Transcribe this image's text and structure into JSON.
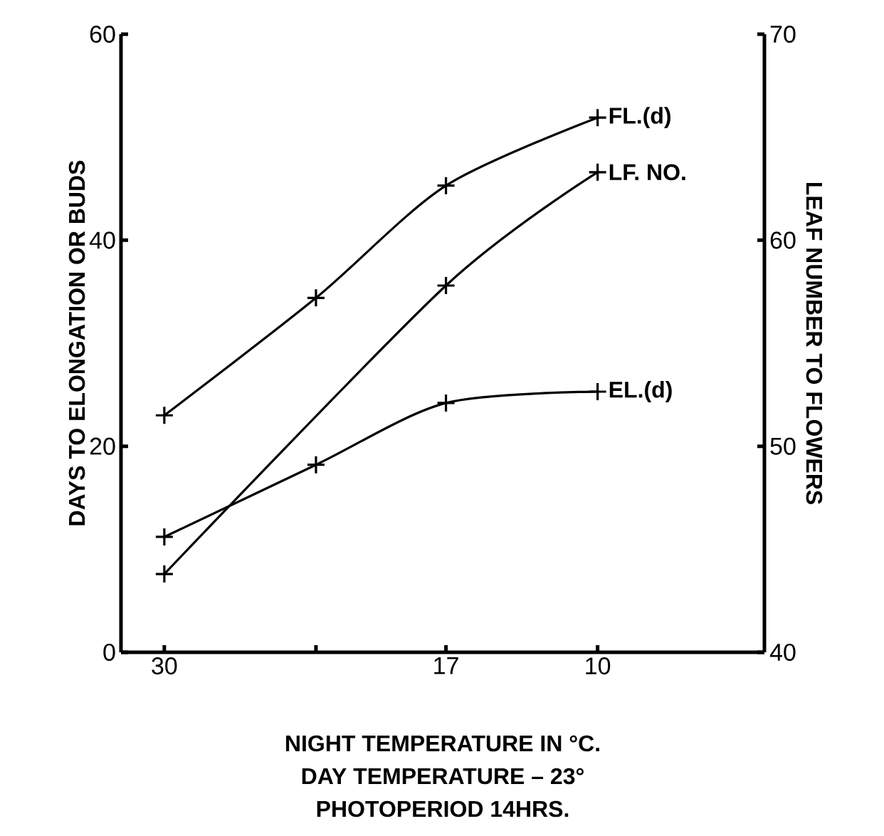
{
  "chart_data": {
    "type": "line",
    "xlabel": "NIGHT TEMPERATURE IN °C.",
    "ylabel": "DAYS TO ELONGATION OR BUDS",
    "y2label": "LEAF NUMBER TO FLOWERS",
    "annotations": [
      "DAY TEMPERATURE – 23°",
      "PHOTOPERIOD 14HRS."
    ],
    "x": [
      30,
      23,
      17,
      10
    ],
    "series": [
      {
        "name": "FL.(d)",
        "color": "#000000",
        "values": [
          23,
          34.4,
          45.3,
          51.9
        ]
      },
      {
        "name": "LF. NO.",
        "color": "#000000",
        "axis": "y2",
        "x": [
          30,
          17,
          10
        ],
        "values": [
          43.8,
          57.8,
          63.3
        ]
      },
      {
        "name": "EL.(d)",
        "color": "#000000",
        "values": [
          11.2,
          18.2,
          24.2,
          25.3
        ]
      }
    ],
    "xlim": [
      32,
      2.3
    ],
    "xticks": [
      30,
      {
        "value": 23,
        "label": null
      },
      17,
      10
    ],
    "ylim": [
      0,
      60
    ],
    "yticks": [
      0,
      20,
      40,
      60
    ],
    "y2lim": [
      40,
      70
    ],
    "y2ticks": [
      40,
      50,
      60,
      70
    ],
    "marker": "cross",
    "line_style": "solid"
  }
}
